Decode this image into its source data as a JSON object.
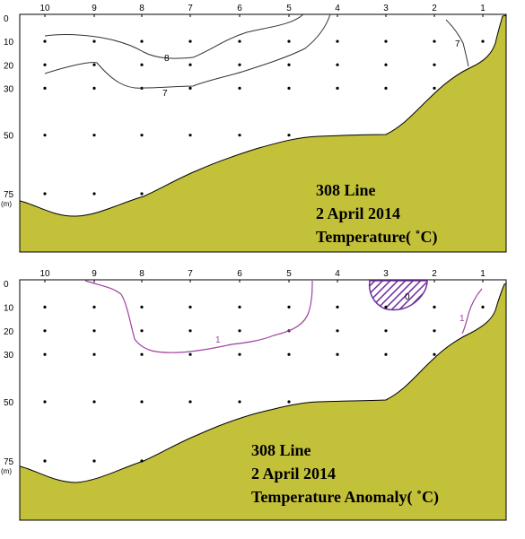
{
  "chart_data": [
    {
      "type": "contour",
      "caption": [
        "308 Line",
        "2 April 2014",
        "Temperature( ˚C)"
      ],
      "x_stations": [
        "10",
        "9",
        "8",
        "7",
        "6",
        "5",
        "4",
        "3",
        "2",
        "1"
      ],
      "y_depth_ticks": [
        "0",
        "10",
        "20",
        "30",
        "50",
        "75"
      ],
      "y_unit": "(m)",
      "colors": {
        "seafloor": "#c3c03a",
        "isoline": "#333333",
        "frame": "#000000"
      },
      "isotherms": [
        {
          "label": "8",
          "level": 8
        },
        {
          "label": "7",
          "level": 7
        },
        {
          "label": "7",
          "level": 7
        }
      ]
    },
    {
      "type": "contour",
      "caption": [
        "308 Line",
        "2 April 2014",
        "Temperature Anomaly( ˚C)"
      ],
      "x_stations": [
        "10",
        "9",
        "8",
        "7",
        "6",
        "5",
        "4",
        "3",
        "2",
        "1"
      ],
      "y_depth_ticks": [
        "0",
        "10",
        "20",
        "30",
        "50",
        "75"
      ],
      "y_unit": "(m)",
      "colors": {
        "seafloor": "#c3c03a",
        "isoline": "#a040a0",
        "negative_hatch": "#7030a0",
        "frame": "#000000"
      },
      "isotherms": [
        {
          "label": "1",
          "level": 1
        },
        {
          "label": "0",
          "level": 0
        },
        {
          "label": "1",
          "level": 1
        }
      ]
    }
  ]
}
